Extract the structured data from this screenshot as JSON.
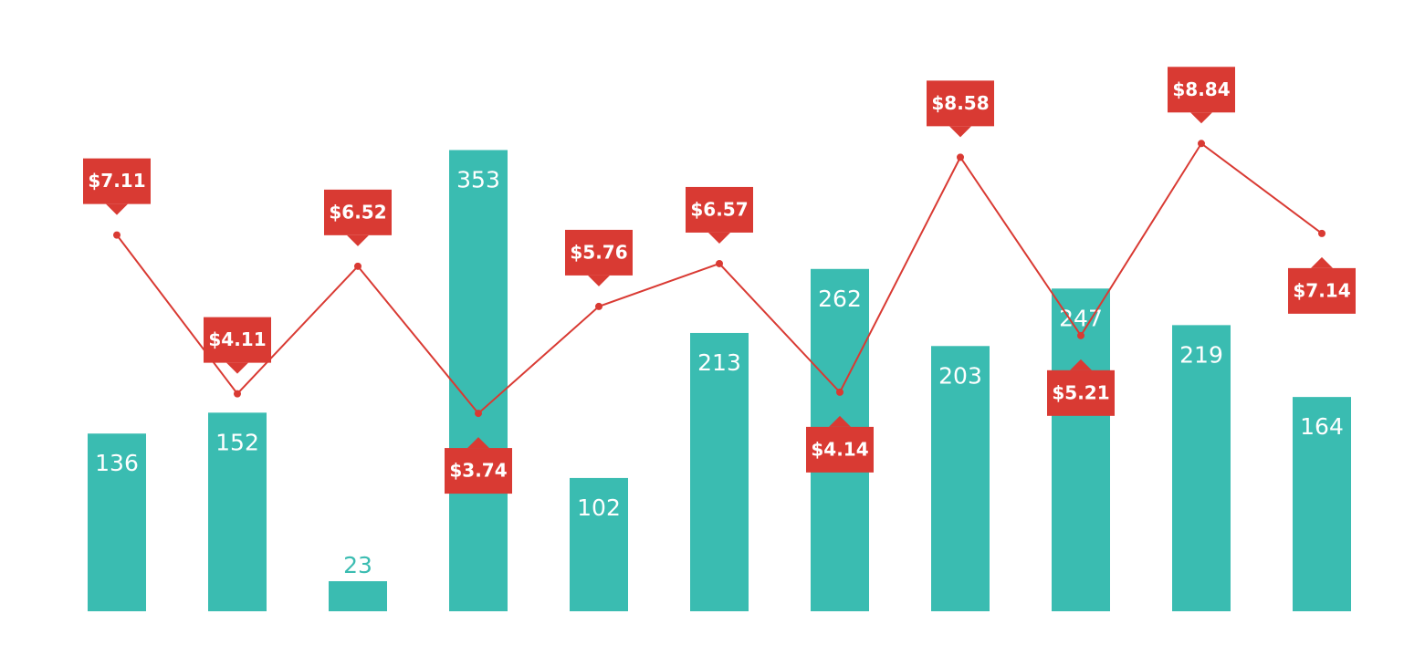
{
  "chart_data": {
    "type": "bar",
    "categories": [
      null,
      null,
      null,
      null,
      null,
      null,
      null,
      null,
      null,
      null,
      null
    ],
    "series": [
      {
        "type": "bar",
        "color": "#3abcb1",
        "values": [
          136,
          152,
          23,
          353,
          102,
          213,
          262,
          203,
          247,
          219,
          164
        ]
      },
      {
        "type": "line",
        "axis": "y2",
        "color": "#d93a33",
        "values": [
          7.11,
          4.11,
          6.52,
          3.74,
          5.76,
          6.57,
          4.14,
          8.58,
          5.21,
          8.84,
          7.14
        ],
        "value_labels": [
          "$7.11",
          "$4.11",
          "$6.52",
          "$3.74",
          "$5.76",
          "$6.57",
          "$4.14",
          "$8.58",
          "$5.21",
          "$8.84",
          "$7.14"
        ]
      }
    ],
    "ylim": [
      0,
      405
    ],
    "y2lim": [
      0,
      10
    ]
  }
}
